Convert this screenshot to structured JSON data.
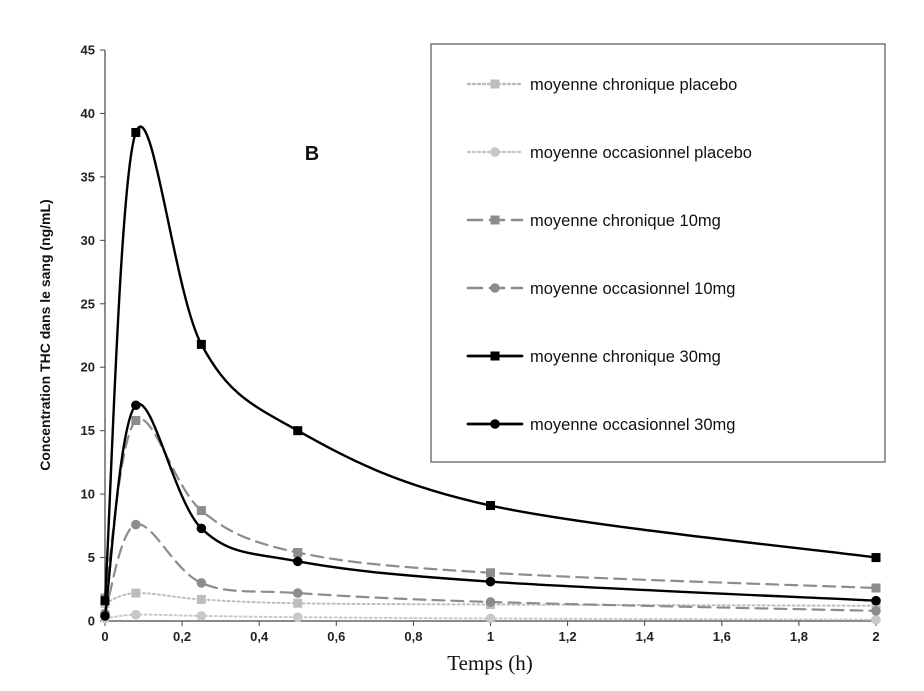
{
  "chart_data": {
    "type": "line",
    "title": "",
    "panel_label": "B",
    "xlabel": "Temps (h)",
    "ylabel": "Concentration THC dans le sang (ng/mL)",
    "xlim": [
      0,
      2
    ],
    "ylim": [
      0,
      45
    ],
    "x_ticks": [
      0,
      0.2,
      0.4,
      0.6,
      0.8,
      1,
      1.2,
      1.4,
      1.6,
      1.8,
      2
    ],
    "x_tick_labels": [
      "0",
      "0,2",
      "0,4",
      "0,6",
      "0,8",
      "1",
      "1,2",
      "1,4",
      "1,6",
      "1,8",
      "2"
    ],
    "y_ticks": [
      0,
      5,
      10,
      15,
      20,
      25,
      30,
      35,
      40,
      45
    ],
    "y_tick_labels": [
      "0",
      "5",
      "10",
      "15",
      "20",
      "25",
      "30",
      "35",
      "40",
      "45"
    ],
    "grid": false,
    "legend_position": "top-right",
    "series": [
      {
        "name": "moyenne chronique placebo",
        "color": "#bdbdbd",
        "line": "dotted",
        "marker": "square",
        "x": [
          0,
          0.08,
          0.25,
          0.5,
          1,
          2
        ],
        "y": [
          1.4,
          2.2,
          1.7,
          1.4,
          1.3,
          1.2
        ]
      },
      {
        "name": "moyenne occasionnel placebo",
        "color": "#c8c8c8",
        "line": "dotted",
        "marker": "circle",
        "x": [
          0,
          0.08,
          0.25,
          0.5,
          1,
          2
        ],
        "y": [
          0.2,
          0.5,
          0.4,
          0.3,
          0.2,
          0.1
        ]
      },
      {
        "name": "moyenne chronique 10mg",
        "color": "#8c8c8c",
        "line": "dashed",
        "marker": "square",
        "x": [
          0,
          0.08,
          0.25,
          0.5,
          1,
          2
        ],
        "y": [
          1.8,
          15.8,
          8.7,
          5.4,
          3.8,
          2.6
        ]
      },
      {
        "name": "moyenne occasionnel 10mg",
        "color": "#8c8c8c",
        "line": "dashed",
        "marker": "circle",
        "x": [
          0,
          0.08,
          0.25,
          0.5,
          1,
          2
        ],
        "y": [
          0.6,
          7.6,
          3.0,
          2.2,
          1.5,
          0.8
        ]
      },
      {
        "name": "moyenne chronique 30mg",
        "color": "#000000",
        "line": "solid",
        "marker": "square",
        "x": [
          0,
          0.08,
          0.25,
          0.5,
          1,
          2
        ],
        "y": [
          1.6,
          38.5,
          21.8,
          15.0,
          9.1,
          5.0
        ]
      },
      {
        "name": "moyenne occasionnel 30mg",
        "color": "#000000",
        "line": "solid",
        "marker": "circle",
        "x": [
          0,
          0.08,
          0.25,
          0.5,
          1,
          2
        ],
        "y": [
          0.4,
          17.0,
          7.3,
          4.7,
          3.1,
          1.6
        ]
      }
    ]
  }
}
